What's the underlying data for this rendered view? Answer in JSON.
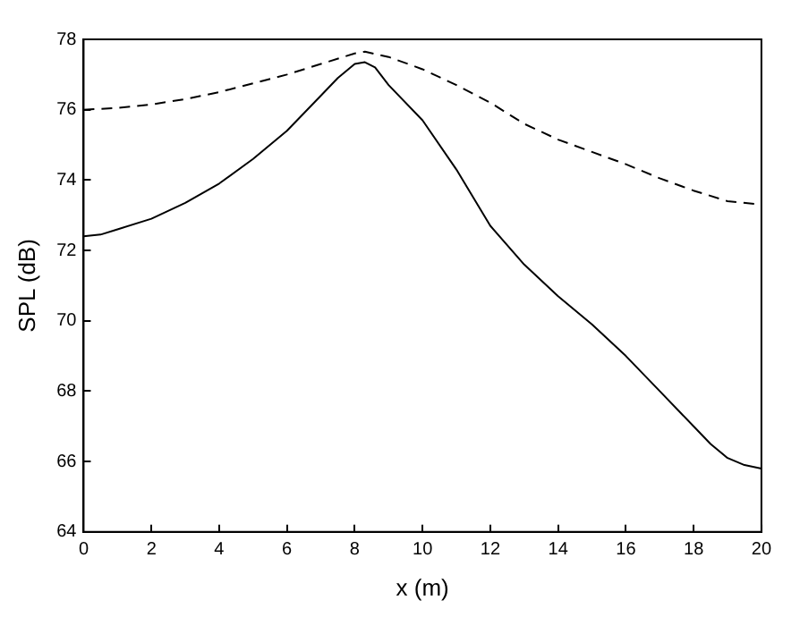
{
  "chart_data": {
    "type": "line",
    "xlabel": "x (m)",
    "ylabel": "SPL (dB)",
    "xlim": [
      0,
      20
    ],
    "ylim": [
      64,
      78
    ],
    "xticks": [
      0,
      2,
      4,
      6,
      8,
      10,
      12,
      14,
      16,
      18,
      20
    ],
    "yticks": [
      64,
      66,
      68,
      70,
      72,
      74,
      76,
      78
    ],
    "grid": false,
    "legend": false,
    "marker": "none",
    "series": [
      {
        "color": "#000000",
        "line_style": "solid",
        "x": [
          0,
          0.5,
          1,
          2,
          3,
          4,
          5,
          6,
          7,
          7.5,
          8,
          8.3,
          8.6,
          9,
          10,
          11,
          12,
          13,
          14,
          15,
          16,
          17,
          18,
          18.5,
          19,
          19.5,
          20
        ],
        "values": [
          72.4,
          72.45,
          72.6,
          72.9,
          73.35,
          73.9,
          74.6,
          75.4,
          76.4,
          76.9,
          77.3,
          77.35,
          77.2,
          76.7,
          75.7,
          74.3,
          72.7,
          71.6,
          70.7,
          69.9,
          69.0,
          68.0,
          67.0,
          66.5,
          66.1,
          65.9,
          65.8
        ]
      },
      {
        "color": "#000000",
        "line_style": "dashed",
        "x": [
          0,
          1,
          2,
          3,
          4,
          5,
          6,
          7,
          8,
          8.3,
          9,
          10,
          11,
          12,
          13,
          14,
          15,
          16,
          17,
          18,
          19,
          20
        ],
        "values": [
          76.0,
          76.05,
          76.15,
          76.3,
          76.5,
          76.75,
          77.0,
          77.3,
          77.6,
          77.65,
          77.5,
          77.15,
          76.7,
          76.2,
          75.6,
          75.15,
          74.8,
          74.45,
          74.05,
          73.7,
          73.4,
          73.3
        ]
      }
    ]
  }
}
